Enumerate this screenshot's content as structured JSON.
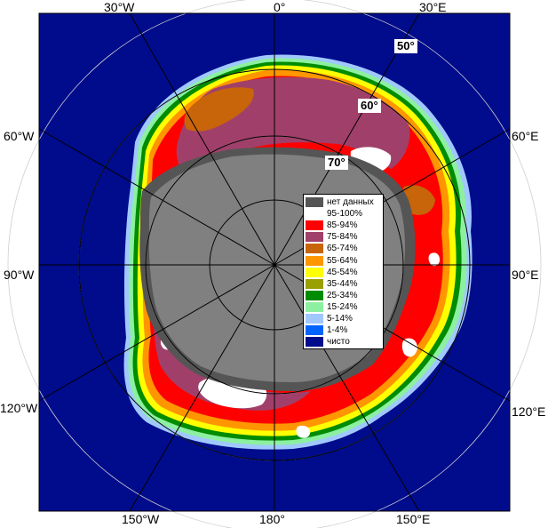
{
  "colors": {
    "no_data": "#555555",
    "c95_100": "#ffffff",
    "c85_94": "#ff0000",
    "c75_84": "#a0406a",
    "c65_74": "#c8640a",
    "c55_64": "#ff9600",
    "c45_54": "#ffff00",
    "c35_44": "#9aa000",
    "c25_34": "#008c00",
    "c15_24": "#8cf0a0",
    "c5_14": "#a0c8ff",
    "c1_4": "#0064ff",
    "clear": "#000c8c",
    "land": "#808080",
    "grid": "#d0d0d0"
  },
  "longitude_labels": {
    "top": [
      "30°W",
      "0°",
      "30°E"
    ],
    "bottom": [
      "150°W",
      "180°",
      "150°E"
    ],
    "left": [
      "60°W",
      "90°W",
      "120°W"
    ],
    "right": [
      "60°E",
      "90°E",
      "120°E"
    ]
  },
  "latitude_labels": [
    "50°",
    "60°",
    "70°"
  ],
  "legend": [
    {
      "label": "нет данных",
      "color": "#555555"
    },
    {
      "label": "95-100%",
      "color": "#ffffff"
    },
    {
      "label": "85-94%",
      "color": "#ff0000"
    },
    {
      "label": "75-84%",
      "color": "#a0406a"
    },
    {
      "label": "65-74%",
      "color": "#c8640a"
    },
    {
      "label": "55-64%",
      "color": "#ff9600"
    },
    {
      "label": "45-54%",
      "color": "#ffff00"
    },
    {
      "label": "35-44%",
      "color": "#9aa000"
    },
    {
      "label": "25-34%",
      "color": "#008c00"
    },
    {
      "label": "15-24%",
      "color": "#8cf0a0"
    },
    {
      "label": "5-14%",
      "color": "#a0c8ff"
    },
    {
      "label": "1-4%",
      "color": "#0064ff"
    },
    {
      "label": "чисто",
      "color": "#000c8c"
    }
  ]
}
